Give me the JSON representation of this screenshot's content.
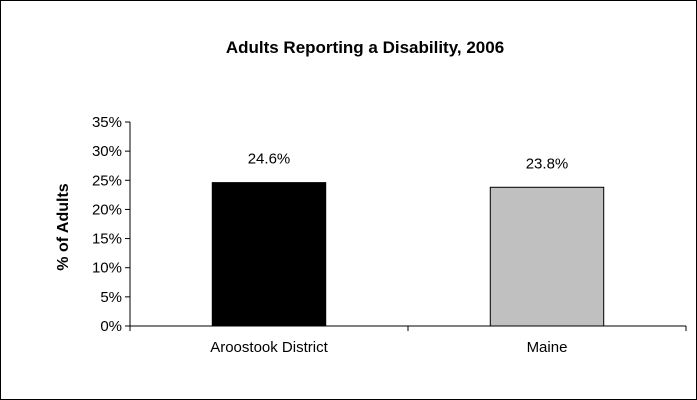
{
  "chart_data": {
    "type": "bar",
    "title": "Adults Reporting a Disability, 2006",
    "xlabel": "",
    "ylabel": "% of Adults",
    "categories": [
      "Aroostook District",
      "Maine"
    ],
    "values": [
      24.6,
      23.8
    ],
    "data_labels": [
      "24.6%",
      "23.8%"
    ],
    "bar_colors": [
      "#000000",
      "#c0c0c0"
    ],
    "ylim": [
      0,
      35
    ],
    "yticks": [
      0,
      5,
      10,
      15,
      20,
      25,
      30,
      35
    ],
    "ytick_labels": [
      "0%",
      "5%",
      "10%",
      "15%",
      "20%",
      "25%",
      "30%",
      "35%"
    ],
    "grid": false,
    "legend": false
  }
}
